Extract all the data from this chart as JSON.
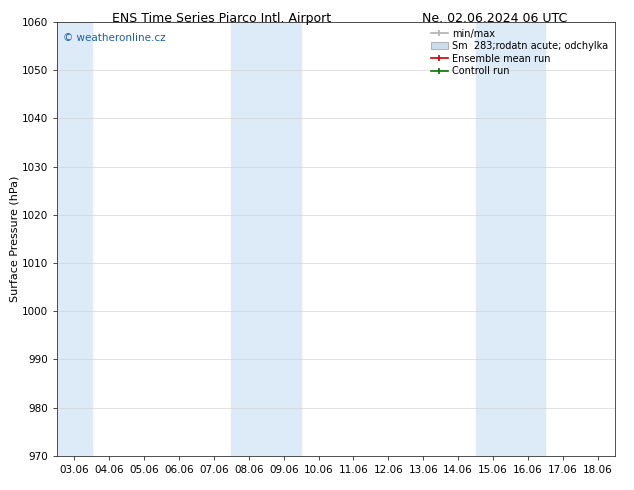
{
  "title_left": "ENS Time Series Piarco Intl. Airport",
  "title_right": "Ne. 02.06.2024 06 UTC",
  "ylabel": "Surface Pressure (hPa)",
  "ylim": [
    970,
    1060
  ],
  "yticks": [
    970,
    980,
    990,
    1000,
    1010,
    1020,
    1030,
    1040,
    1050,
    1060
  ],
  "xtick_labels": [
    "03.06",
    "04.06",
    "05.06",
    "06.06",
    "07.06",
    "08.06",
    "09.06",
    "10.06",
    "11.06",
    "12.06",
    "13.06",
    "14.06",
    "15.06",
    "16.06",
    "17.06",
    "18.06"
  ],
  "xtick_positions": [
    0,
    1,
    2,
    3,
    4,
    5,
    6,
    7,
    8,
    9,
    10,
    11,
    12,
    13,
    14,
    15
  ],
  "xlim": [
    -0.5,
    15.5
  ],
  "shaded_bands": [
    {
      "xmin": -0.5,
      "xmax": 0.5,
      "color": "#ddeaf7"
    },
    {
      "xmin": 4.5,
      "xmax": 6.5,
      "color": "#ddeaf7"
    },
    {
      "xmin": 11.5,
      "xmax": 13.5,
      "color": "#ddeaf7"
    }
  ],
  "watermark": "© weatheronline.cz",
  "watermark_color": "#1a5fa8",
  "legend_entries": [
    {
      "label": "min/max",
      "color": "#b0b0b0",
      "patch": false
    },
    {
      "label": "Sm  283;rodatn acute; odchylka",
      "color": "#ccdded",
      "patch": true
    },
    {
      "label": "Ensemble mean run",
      "color": "#cc0000",
      "patch": false
    },
    {
      "label": "Controll run",
      "color": "#007700",
      "patch": false
    }
  ],
  "background_color": "#ffffff",
  "title_fontsize": 9,
  "axis_label_fontsize": 8,
  "tick_fontsize": 7.5,
  "legend_fontsize": 7,
  "watermark_fontsize": 7.5
}
